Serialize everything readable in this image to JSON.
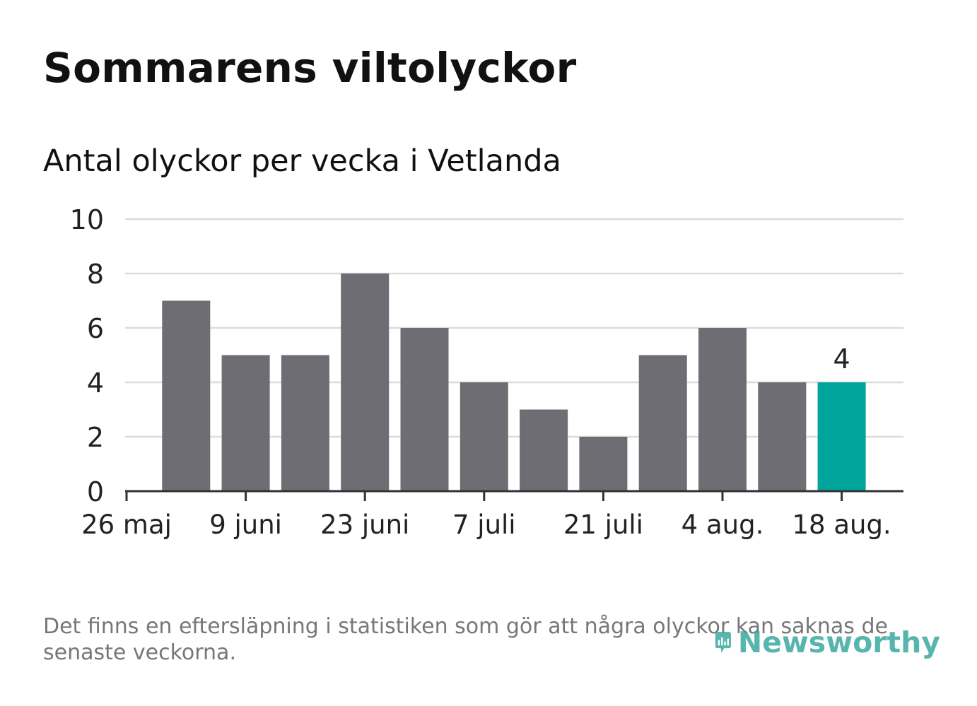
{
  "title": "Sommarens viltolyckor",
  "subtitle": "Antal olyckor per vecka i Vetlanda",
  "footnote": "Det finns en eftersläpning i statistiken som gör att några olyckor kan saknas de senaste veckorna.",
  "logo": {
    "text": "Newsworthy",
    "icon": "newsworthy-chart-bubble-icon"
  },
  "colors": {
    "bar": "#6e6d73",
    "highlight": "#00a49a",
    "grid": "#dcdcdc",
    "axis": "#333333",
    "text": "#222222"
  },
  "chart_data": {
    "type": "bar",
    "title": "Antal olyckor per vecka i Vetlanda",
    "xlabel": "",
    "ylabel": "",
    "ylim": [
      0,
      10
    ],
    "yticks": [
      "0",
      "2",
      "4",
      "6",
      "8",
      "10"
    ],
    "xtick_labels": [
      "26 maj",
      "9 juni",
      "23 juni",
      "7 juli",
      "21 juli",
      "4 aug.",
      "18 aug."
    ],
    "values": [
      7,
      5,
      5,
      8,
      6,
      4,
      3,
      2,
      5,
      6,
      4,
      4
    ],
    "highlight_index": 11,
    "highlight_label": "4",
    "grid": true,
    "legend": "none"
  }
}
